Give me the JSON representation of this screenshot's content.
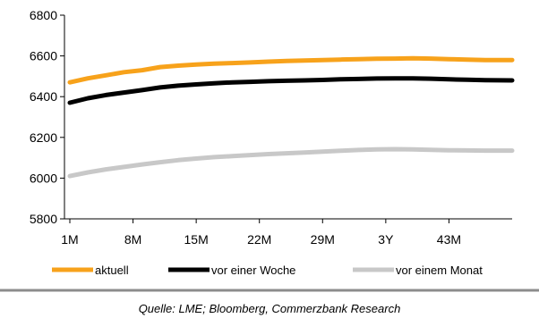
{
  "chart_data": {
    "type": "line",
    "x_ticks": [
      "1M",
      "8M",
      "15M",
      "22M",
      "29M",
      "3Y",
      "43M"
    ],
    "x_months_range": [
      1,
      50
    ],
    "ylim": [
      5800,
      6800
    ],
    "y_ticks": [
      5800,
      6000,
      6200,
      6400,
      6600,
      6800
    ],
    "grid": false,
    "legend_position": "bottom",
    "series": [
      {
        "name": "aktuell",
        "color": "#F7A21B",
        "points": [
          [
            1,
            6470
          ],
          [
            3,
            6490
          ],
          [
            5,
            6505
          ],
          [
            7,
            6520
          ],
          [
            9,
            6530
          ],
          [
            11,
            6545
          ],
          [
            13,
            6552
          ],
          [
            15,
            6558
          ],
          [
            17,
            6562
          ],
          [
            19,
            6565
          ],
          [
            21,
            6568
          ],
          [
            23,
            6572
          ],
          [
            25,
            6575
          ],
          [
            27,
            6577
          ],
          [
            29,
            6580
          ],
          [
            31,
            6582
          ],
          [
            33,
            6584
          ],
          [
            35,
            6586
          ],
          [
            37,
            6587
          ],
          [
            39,
            6588
          ],
          [
            41,
            6587
          ],
          [
            43,
            6584
          ],
          [
            45,
            6582
          ],
          [
            47,
            6580
          ],
          [
            50,
            6580
          ]
        ]
      },
      {
        "name": "vor einer Woche",
        "color": "#000000",
        "points": [
          [
            1,
            6370
          ],
          [
            3,
            6392
          ],
          [
            5,
            6408
          ],
          [
            7,
            6420
          ],
          [
            9,
            6432
          ],
          [
            11,
            6445
          ],
          [
            13,
            6454
          ],
          [
            15,
            6460
          ],
          [
            17,
            6466
          ],
          [
            19,
            6470
          ],
          [
            21,
            6473
          ],
          [
            23,
            6476
          ],
          [
            25,
            6478
          ],
          [
            27,
            6480
          ],
          [
            29,
            6482
          ],
          [
            31,
            6485
          ],
          [
            33,
            6487
          ],
          [
            35,
            6489
          ],
          [
            37,
            6490
          ],
          [
            39,
            6490
          ],
          [
            41,
            6488
          ],
          [
            43,
            6485
          ],
          [
            45,
            6483
          ],
          [
            47,
            6481
          ],
          [
            50,
            6480
          ]
        ]
      },
      {
        "name": "vor einem Monat",
        "color": "#C8C8C8",
        "points": [
          [
            1,
            6010
          ],
          [
            3,
            6028
          ],
          [
            5,
            6043
          ],
          [
            7,
            6055
          ],
          [
            9,
            6067
          ],
          [
            11,
            6078
          ],
          [
            13,
            6088
          ],
          [
            15,
            6096
          ],
          [
            17,
            6103
          ],
          [
            19,
            6108
          ],
          [
            21,
            6113
          ],
          [
            23,
            6118
          ],
          [
            25,
            6122
          ],
          [
            27,
            6126
          ],
          [
            29,
            6130
          ],
          [
            31,
            6134
          ],
          [
            33,
            6138
          ],
          [
            35,
            6141
          ],
          [
            37,
            6142
          ],
          [
            39,
            6141
          ],
          [
            41,
            6139
          ],
          [
            43,
            6137
          ],
          [
            45,
            6136
          ],
          [
            47,
            6135
          ],
          [
            50,
            6135
          ]
        ]
      }
    ]
  },
  "footer": {
    "source": "Quelle: LME; Bloomberg, Commerzbank Research"
  }
}
